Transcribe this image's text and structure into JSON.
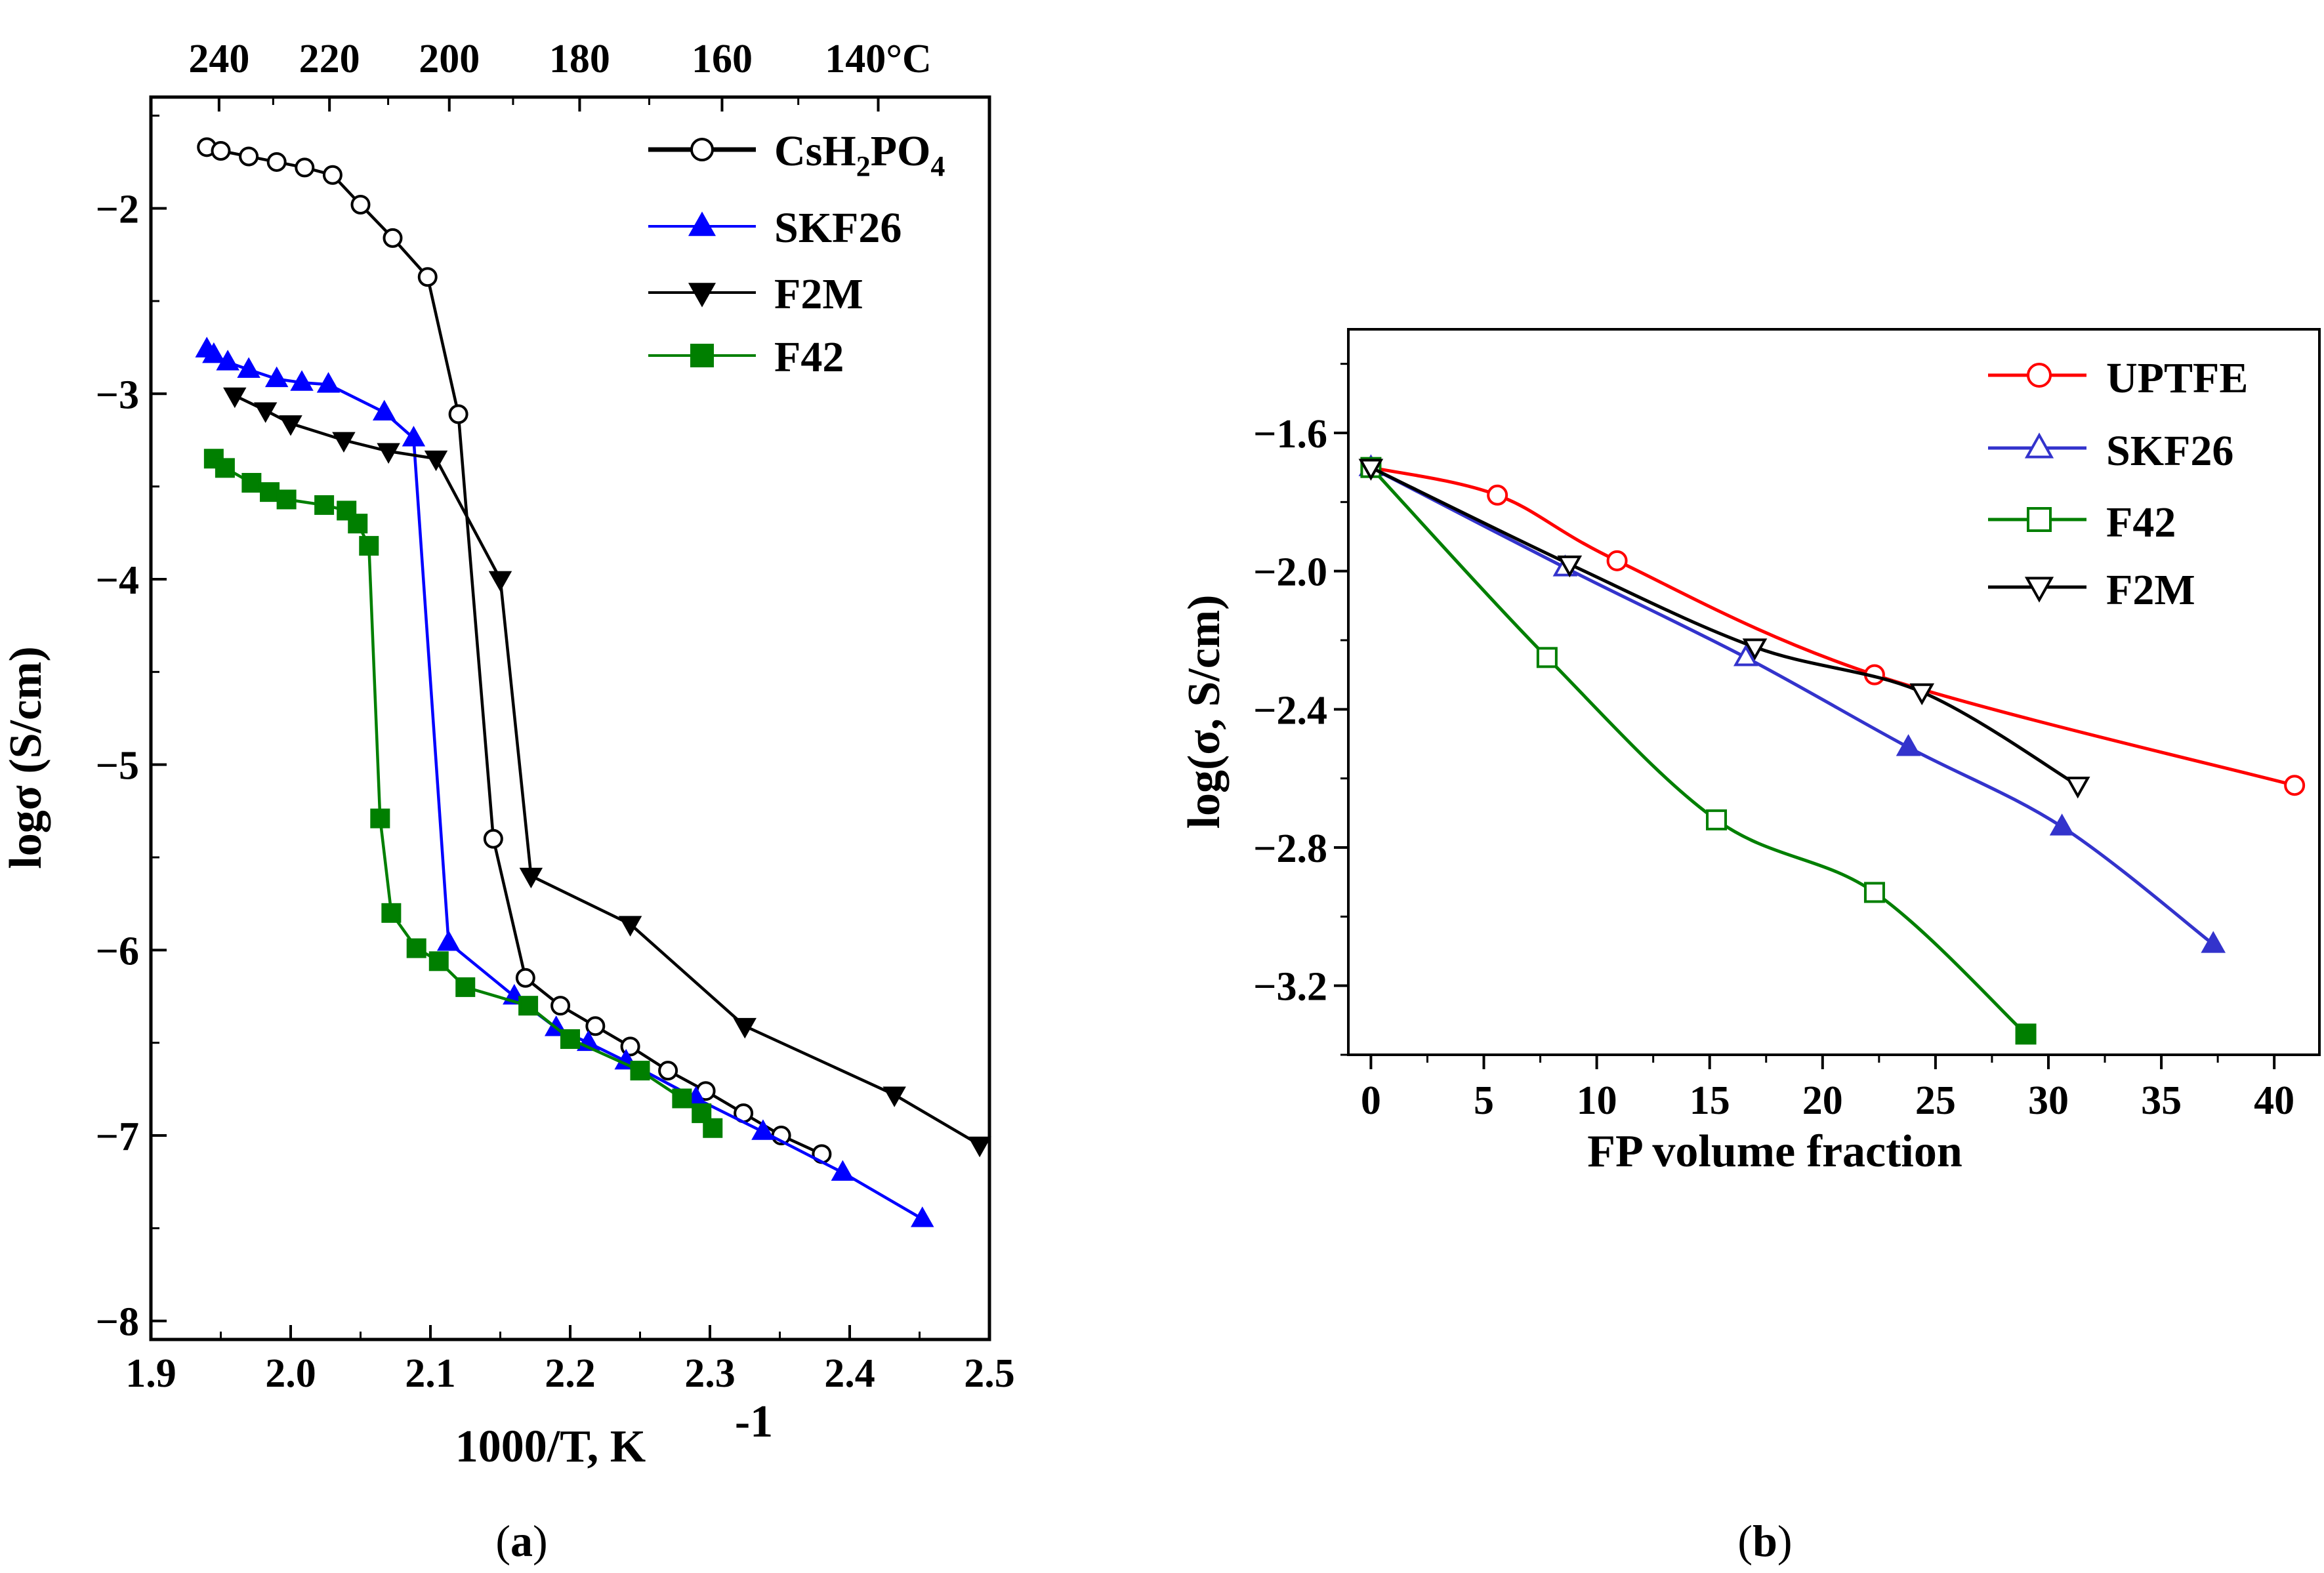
{
  "chart_data": [
    {
      "type": "line",
      "panel_label": "(a)",
      "panel_letter": "a",
      "xlabel": "1000/T, K",
      "xlabel_exponent": "-1",
      "ylabel": "logσ (S/cm)",
      "xlim": [
        1.9,
        2.5
      ],
      "ylim": [
        -8.1,
        -1.4
      ],
      "x_ticks": [
        1.9,
        2.0,
        2.1,
        2.2,
        2.3,
        2.4,
        2.5
      ],
      "x_tick_labels": [
        "1.9",
        "2.0",
        "2.1",
        "2.2",
        "2.3",
        "2.4",
        "2.5"
      ],
      "y_ticks": [
        -2,
        -3,
        -4,
        -5,
        -6,
        -7,
        -8
      ],
      "y_tick_labels": [
        "−2",
        "−3",
        "−4",
        "−5",
        "−6",
        "−7",
        "−8"
      ],
      "top_axis_ticks": [
        240,
        220,
        200,
        180,
        160,
        140
      ],
      "top_axis_labels": [
        "240",
        "220",
        "200",
        "180",
        "160",
        "140°C"
      ],
      "legend_position": "top-right",
      "series": [
        {
          "name": "CsH2PO4",
          "legend_main": "CsH",
          "legend_sub1": "2",
          "legend_mid": "PO",
          "legend_sub2": "4",
          "color": "#000000",
          "marker": "circle-open",
          "x": [
            1.94,
            1.95,
            1.97,
            1.99,
            2.01,
            2.03,
            2.05,
            2.073,
            2.098,
            2.12,
            2.145,
            2.168,
            2.193,
            2.218,
            2.243,
            2.27,
            2.297,
            2.324,
            2.351,
            2.38
          ],
          "y": [
            -1.67,
            -1.69,
            -1.72,
            -1.75,
            -1.78,
            -1.82,
            -1.98,
            -2.16,
            -2.37,
            -3.11,
            -5.4,
            -6.15,
            -6.3,
            -6.41,
            -6.52,
            -6.65,
            -6.76,
            -6.88,
            -7.0,
            -7.1
          ]
        },
        {
          "name": "SKF26",
          "color": "#0000ff",
          "marker": "triangle-up-filled",
          "x": [
            1.94,
            1.945,
            1.955,
            1.97,
            1.99,
            2.008,
            2.027,
            2.067,
            2.088,
            2.113,
            2.16,
            2.19,
            2.213,
            2.24,
            2.29,
            2.338,
            2.395,
            2.452
          ],
          "y": [
            -2.76,
            -2.79,
            -2.83,
            -2.87,
            -2.92,
            -2.94,
            -2.95,
            -3.1,
            -3.24,
            -5.96,
            -6.25,
            -6.42,
            -6.5,
            -6.6,
            -6.8,
            -6.98,
            -7.2,
            -7.45
          ]
        },
        {
          "name": "F2M",
          "color": "#000000",
          "marker": "triangle-down-filled",
          "x": [
            1.96,
            1.982,
            2.0,
            2.038,
            2.07,
            2.104,
            2.15,
            2.172,
            2.243,
            2.325,
            2.432,
            2.493
          ],
          "y": [
            -3.01,
            -3.09,
            -3.16,
            -3.25,
            -3.31,
            -3.35,
            -4.0,
            -5.6,
            -5.86,
            -6.41,
            -6.78,
            -7.05
          ]
        },
        {
          "name": "F42",
          "color": "#007f00",
          "marker": "square-filled",
          "x": [
            1.945,
            1.953,
            1.972,
            1.985,
            1.997,
            2.024,
            2.04,
            2.048,
            2.056,
            2.064,
            2.072,
            2.09,
            2.106,
            2.125,
            2.17,
            2.2,
            2.25,
            2.28,
            2.294,
            2.302
          ],
          "y": [
            -3.35,
            -3.4,
            -3.48,
            -3.53,
            -3.57,
            -3.6,
            -3.63,
            -3.7,
            -3.82,
            -5.29,
            -5.8,
            -5.99,
            -6.06,
            -6.2,
            -6.3,
            -6.48,
            -6.65,
            -6.8,
            -6.88,
            -6.96
          ]
        }
      ]
    },
    {
      "type": "line",
      "panel_label": "(b)",
      "panel_letter": "b",
      "xlabel": "FP volume fraction",
      "ylabel": "log(σ, S/cm)",
      "xlim": [
        -1,
        42
      ],
      "ylim": [
        -3.4,
        -1.3
      ],
      "x_ticks": [
        0,
        5,
        10,
        15,
        20,
        25,
        30,
        35,
        40
      ],
      "x_tick_labels": [
        "0",
        "5",
        "10",
        "15",
        "20",
        "25",
        "30",
        "35",
        "40"
      ],
      "y_ticks": [
        -1.6,
        -2.0,
        -2.4,
        -2.8,
        -3.2
      ],
      "y_tick_labels": [
        "−1.6",
        "−2.0",
        "−2.4",
        "−2.8",
        "−3.2"
      ],
      "legend_position": "top-right",
      "series": [
        {
          "name": "UPTFE",
          "color": "#ff0000",
          "marker": "circle-open",
          "x": [
            0,
            5.6,
            10.9,
            22.3,
            40.9
          ],
          "y": [
            -1.7,
            -1.78,
            -1.97,
            -2.3,
            -2.62
          ]
        },
        {
          "name": "SKF26",
          "color": "#3333cc",
          "marker": "triangle-up-open",
          "filled_from_index": 3,
          "x": [
            0,
            8.6,
            16.6,
            23.8,
            30.6,
            37.3
          ],
          "y": [
            -1.7,
            -1.99,
            -2.25,
            -2.51,
            -2.74,
            -3.08
          ]
        },
        {
          "name": "F42",
          "color": "#007f00",
          "marker": "square-open",
          "filled_from_index": 4,
          "x": [
            0,
            7.8,
            15.3,
            22.3,
            29.0
          ],
          "y": [
            -1.7,
            -2.25,
            -2.72,
            -2.93,
            -3.34
          ]
        },
        {
          "name": "F2M",
          "color": "#000000",
          "marker": "triangle-down-open",
          "x": [
            0,
            8.8,
            17.0,
            24.4,
            31.3
          ],
          "y": [
            -1.7,
            -1.98,
            -2.22,
            -2.35,
            -2.62
          ]
        }
      ]
    }
  ]
}
